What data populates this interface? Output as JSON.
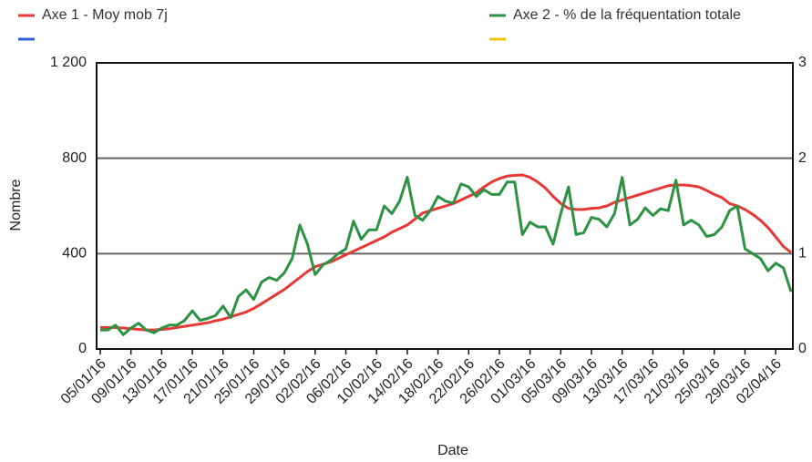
{
  "chart_data": {
    "type": "line",
    "x_label": "Date",
    "y_label": "Nombre",
    "categories": [
      "05/01/16",
      null,
      null,
      null,
      "09/01/16",
      null,
      null,
      null,
      "13/01/16",
      null,
      null,
      null,
      "17/01/16",
      null,
      null,
      null,
      "21/01/16",
      null,
      null,
      null,
      "25/01/16",
      null,
      null,
      null,
      "29/01/16",
      null,
      null,
      null,
      "02/02/16",
      null,
      null,
      null,
      "06/02/16",
      null,
      null,
      null,
      "10/02/16",
      null,
      null,
      null,
      "14/02/16",
      null,
      null,
      null,
      "18/02/16",
      null,
      null,
      null,
      "22/02/16",
      null,
      null,
      null,
      "26/02/16",
      null,
      null,
      null,
      "01/03/16",
      null,
      null,
      null,
      "05/03/16",
      null,
      null,
      null,
      "09/03/16",
      null,
      null,
      null,
      "13/03/16",
      null,
      null,
      null,
      "17/03/16",
      null,
      null,
      null,
      "21/03/16",
      null,
      null,
      null,
      "25/03/16",
      null,
      null,
      null,
      "29/03/16",
      null,
      null,
      null,
      "02/04/16",
      null,
      null
    ],
    "series": [
      {
        "name": "Axe 1 - Moy mob 7j",
        "color": "#e53935",
        "axis": "y",
        "values": [
          90,
          90,
          90,
          88,
          85,
          82,
          80,
          80,
          82,
          85,
          90,
          95,
          100,
          105,
          110,
          118,
          125,
          135,
          145,
          155,
          170,
          190,
          210,
          230,
          250,
          275,
          300,
          325,
          345,
          355,
          365,
          380,
          395,
          410,
          425,
          440,
          455,
          470,
          490,
          505,
          520,
          545,
          570,
          580,
          590,
          600,
          610,
          625,
          640,
          655,
          680,
          700,
          715,
          725,
          728,
          730,
          720,
          700,
          675,
          640,
          610,
          590,
          585,
          585,
          590,
          592,
          600,
          615,
          625,
          635,
          645,
          655,
          665,
          675,
          685,
          688,
          688,
          685,
          680,
          665,
          648,
          635,
          610,
          600,
          585,
          565,
          540,
          510,
          470,
          430,
          405
        ]
      },
      {
        "name": "Axe 2 - % de la fréquentation totale",
        "color": "#2e9244",
        "axis": "y2",
        "values": [
          0.2,
          0.2,
          0.25,
          0.15,
          0.22,
          0.27,
          0.2,
          0.17,
          0.22,
          0.25,
          0.25,
          0.3,
          0.4,
          0.3,
          0.32,
          0.35,
          0.45,
          0.33,
          0.55,
          0.62,
          0.52,
          0.7,
          0.75,
          0.72,
          0.8,
          0.95,
          1.3,
          1.1,
          0.78,
          0.88,
          0.93,
          1.0,
          1.05,
          1.34,
          1.15,
          1.25,
          1.25,
          1.5,
          1.42,
          1.55,
          1.8,
          1.4,
          1.35,
          1.45,
          1.6,
          1.55,
          1.53,
          1.73,
          1.7,
          1.6,
          1.67,
          1.62,
          1.62,
          1.75,
          1.75,
          1.2,
          1.33,
          1.28,
          1.28,
          1.1,
          1.42,
          1.7,
          1.2,
          1.22,
          1.38,
          1.36,
          1.28,
          1.42,
          1.8,
          1.3,
          1.36,
          1.48,
          1.4,
          1.47,
          1.45,
          1.77,
          1.3,
          1.35,
          1.3,
          1.18,
          1.2,
          1.28,
          1.45,
          1.5,
          1.05,
          1.0,
          0.95,
          0.82,
          0.9,
          0.85,
          0.6
        ]
      }
    ],
    "ylim": [
      0,
      1200
    ],
    "yticks": [
      0,
      400,
      800,
      {
        "value": 1200,
        "label": "1 200"
      }
    ],
    "y2lim": [
      0,
      3
    ],
    "y2ticks": [
      0,
      1,
      2,
      3
    ],
    "grid": true
  }
}
